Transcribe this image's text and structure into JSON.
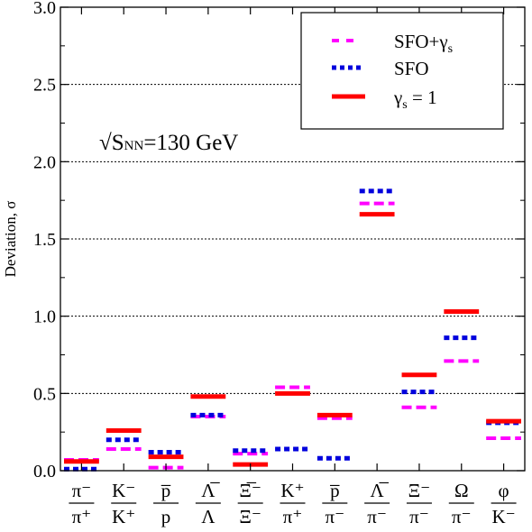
{
  "chart_data": {
    "type": "scatter",
    "title": "",
    "annotation": {
      "prefix": "√",
      "base": "S",
      "subscript": "NN",
      "suffix": "=130 GeV"
    },
    "ylabel": "Deviation, σ",
    "xlabel": "",
    "ylim": [
      0,
      3
    ],
    "yticks": [
      "0.0",
      "0.5",
      "1.0",
      "1.5",
      "2.0",
      "2.5",
      "3.0"
    ],
    "grid": "horizontal dotted at 0.5 steps",
    "legend_position": "top-right",
    "categories": [
      {
        "num": "π⁻",
        "den": "π⁺"
      },
      {
        "num": "K⁻",
        "den": "K⁺"
      },
      {
        "num": "p̅",
        "den": "p"
      },
      {
        "num": "Λ̅",
        "den": "Λ"
      },
      {
        "num": "Ξ̅⁻",
        "den": "Ξ⁻"
      },
      {
        "num": "K⁺",
        "den": "π⁺"
      },
      {
        "num": "p̅",
        "den": "π⁻"
      },
      {
        "num": "Λ̅",
        "den": "π⁻"
      },
      {
        "num": "Ξ⁻",
        "den": "π⁻"
      },
      {
        "num": "Ω",
        "den": "π⁻"
      },
      {
        "num": "φ",
        "den": "K⁻"
      }
    ],
    "series": [
      {
        "name": "SFO+γs",
        "legend_main": "SFO+γ",
        "legend_sub": "s",
        "color": "#ff00ff",
        "style": "dashed",
        "values": [
          0.07,
          0.14,
          0.02,
          0.35,
          0.11,
          0.54,
          0.34,
          1.73,
          0.41,
          0.71,
          0.21
        ]
      },
      {
        "name": "SFO",
        "legend_main": "SFO",
        "legend_sub": "",
        "color": "#0000dd",
        "style": "dotted",
        "values": [
          0.01,
          0.2,
          0.12,
          0.36,
          0.13,
          0.14,
          0.08,
          1.81,
          0.51,
          0.86,
          0.31
        ]
      },
      {
        "name": "γs = 1",
        "legend_main": "γ",
        "legend_sub": "s",
        "legend_tail": " = 1",
        "color": "#ff0000",
        "style": "solid",
        "values": [
          0.06,
          0.26,
          0.09,
          0.48,
          0.04,
          0.5,
          0.36,
          1.66,
          0.62,
          1.03,
          0.32
        ]
      }
    ]
  }
}
